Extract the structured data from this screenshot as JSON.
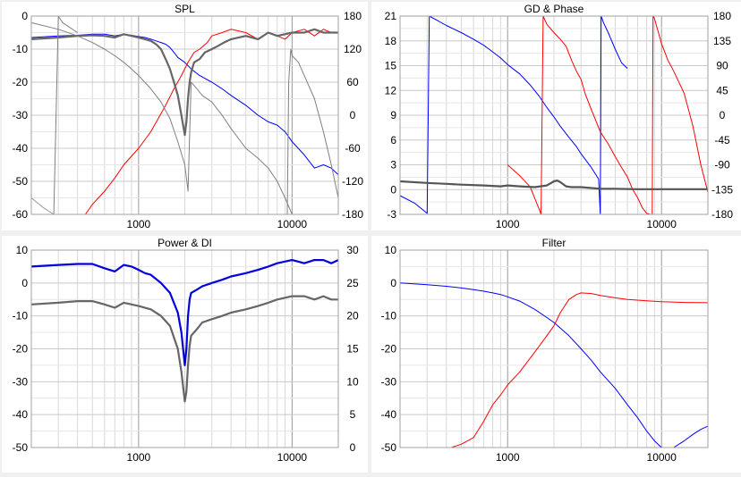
{
  "chart_data": [
    {
      "type": "line",
      "title": "SPL",
      "x_scale": "log",
      "xlim": [
        200,
        20000
      ],
      "ylim": [
        -60,
        0
      ],
      "y2lim": [
        -180,
        180
      ],
      "x_tick_labels": [
        "1000",
        "10000"
      ],
      "y_tick_labels": [
        "0",
        "-10",
        "-20",
        "-30",
        "-40",
        "-50",
        "-60"
      ],
      "y2_tick_labels": [
        "180",
        "120",
        "60",
        "0",
        "-60",
        "-120",
        "-180"
      ],
      "series": [
        {
          "color": "#0000ff",
          "axis": "left",
          "x": [
            200,
            300,
            400,
            500,
            600,
            700,
            800,
            900,
            1000,
            1100,
            1200,
            1300,
            1400,
            1500,
            1600,
            1700,
            1800,
            2000,
            2200,
            2500,
            3000,
            3500,
            4000,
            5000,
            6000,
            7000,
            8000,
            9000,
            10000,
            12000,
            14000,
            16000,
            18000,
            20000
          ],
          "y": [
            -6.5,
            -6,
            -5.8,
            -5.5,
            -5.5,
            -6,
            -5.5,
            -5.8,
            -6.2,
            -6.5,
            -7,
            -7.5,
            -8,
            -8.5,
            -9.5,
            -11,
            -12.5,
            -14,
            -16,
            -18,
            -20,
            -22,
            -24,
            -27,
            -30,
            -32,
            -33,
            -35,
            -38,
            -42,
            -46,
            -45,
            -46,
            -48
          ]
        },
        {
          "color": "#ff0000",
          "axis": "left",
          "x": [
            450,
            500,
            600,
            700,
            800,
            1000,
            1200,
            1500,
            1700,
            1900,
            2100,
            2300,
            2500,
            2800,
            3000,
            3500,
            4000,
            5000,
            6000,
            7000,
            8000,
            9000,
            10000,
            12000,
            14000,
            16000,
            18000,
            20000
          ],
          "y": [
            -60,
            -57,
            -53,
            -49,
            -45,
            -40,
            -35,
            -27,
            -22,
            -18,
            -14,
            -11,
            -10,
            -8,
            -6,
            -5,
            -4,
            -5,
            -7,
            -5,
            -6,
            -7,
            -5,
            -4,
            -6,
            -4,
            -5,
            -5
          ]
        },
        {
          "color": "#666666",
          "axis": "left",
          "x": [
            200,
            300,
            400,
            500,
            600,
            700,
            800,
            900,
            1000,
            1100,
            1200,
            1300,
            1400,
            1500,
            1600,
            1700,
            1800,
            1900,
            1950,
            2000,
            2050,
            2100,
            2150,
            2200,
            2300,
            2500,
            2700,
            3000,
            3300,
            3600,
            4000,
            5000,
            6000,
            7000,
            8000,
            10000,
            12000,
            14000,
            16000,
            18000,
            20000
          ],
          "y": [
            -7,
            -6.5,
            -6,
            -5.8,
            -6,
            -6.5,
            -5.5,
            -6,
            -6.5,
            -7,
            -7.5,
            -8.5,
            -10,
            -13,
            -16,
            -20,
            -24,
            -30,
            -33,
            -36,
            -32,
            -25,
            -20,
            -17,
            -14,
            -13,
            -11,
            -10,
            -9,
            -8,
            -7,
            -6,
            -7,
            -5,
            -6,
            -5,
            -5,
            -4,
            -5,
            -5,
            -5
          ]
        },
        {
          "color": "#808080",
          "axis": "left",
          "x": [
            200,
            300,
            400,
            500,
            600,
            700,
            800,
            900,
            1000,
            1200,
            1400,
            1600,
            1800,
            2000,
            2100,
            2200,
            2400,
            2600,
            3000,
            3500,
            4000,
            5000,
            6000,
            7000,
            8000,
            9000,
            10000,
            12000,
            14000,
            16000,
            18000,
            20000
          ],
          "y": [
            -2,
            -4,
            -6,
            -8,
            -10,
            -12,
            -14,
            -16,
            -18,
            -22,
            -26,
            -31,
            -38,
            -45,
            -53,
            -20,
            -22,
            -24,
            -26,
            -30,
            -34,
            -40,
            -43,
            -46,
            -50,
            -55,
            -60,
            -60,
            -60,
            -60,
            -60,
            -60
          ]
        },
        {
          "color": "#808080",
          "axis": "left",
          "x": [
            200,
            250,
            280,
            300,
            320,
            400
          ],
          "y": [
            -60,
            -60,
            -62,
            0,
            -2,
            -5
          ]
        },
        {
          "color": "#808080",
          "axis": "left",
          "x": [
            9000,
            9300,
            9500,
            9800,
            10000,
            11000,
            12000,
            14000,
            16000,
            18000,
            20000
          ],
          "y": [
            -60,
            -60,
            -20,
            -10,
            -12,
            -14,
            -18,
            -25,
            -35,
            -45,
            -55
          ]
        },
        {
          "color": "#999999",
          "axis": "left",
          "x": [
            200,
            240,
            280
          ],
          "y": [
            -55,
            -58,
            -60
          ]
        }
      ]
    },
    {
      "type": "line",
      "title": "GD & Phase",
      "x_scale": "log",
      "xlim": [
        200,
        20000
      ],
      "ylim": [
        -3,
        21
      ],
      "y2lim": [
        -180,
        180
      ],
      "x_tick_labels": [
        "1000",
        "10000"
      ],
      "y_tick_labels": [
        "21",
        "18",
        "15",
        "12",
        "9",
        "6",
        "3",
        "0",
        "-3"
      ],
      "y2_tick_labels": [
        "180",
        "135",
        "90",
        "45",
        "0",
        "-45",
        "-90",
        "-135",
        "-180"
      ],
      "series": [
        {
          "color": "#0000ff",
          "axis": "right",
          "x": [
            200,
            250,
            300,
            310,
            350,
            400,
            500,
            600,
            700,
            800,
            900,
            1000,
            1200,
            1400,
            1600,
            1800,
            2000,
            2200,
            2500,
            2800,
            3000,
            3500,
            3900,
            4000,
            4050,
            4200,
            4500,
            5000,
            5500,
            6000
          ],
          "y": [
            -146,
            -160,
            -178,
            180,
            172,
            163,
            150,
            138,
            127,
            115,
            104,
            92,
            75,
            55,
            35,
            14,
            -3,
            -20,
            -40,
            -57,
            -70,
            -95,
            -116,
            -180,
            180,
            168,
            150,
            120,
            95,
            85
          ]
        },
        {
          "color": "#ff0000",
          "axis": "right",
          "x": [
            1000,
            1200,
            1400,
            1600,
            1650,
            1700,
            1800,
            2000,
            2200,
            2400,
            2600,
            2800,
            3000,
            3200,
            3500,
            4000,
            4500,
            5000,
            5500,
            6000,
            6500,
            7000,
            7500,
            8000,
            8500,
            8700,
            8800,
            8900,
            9000,
            10000,
            11000,
            12000,
            14000,
            16000,
            18000,
            20000
          ],
          "y": [
            -90,
            -110,
            -130,
            -170,
            -180,
            180,
            165,
            150,
            138,
            125,
            100,
            80,
            65,
            38,
            10,
            -30,
            -52,
            -75,
            -95,
            -112,
            -135,
            -150,
            -168,
            -178,
            -180,
            -180,
            180,
            178,
            175,
            130,
            100,
            80,
            40,
            -20,
            -90,
            -140
          ]
        },
        {
          "color": "#555555",
          "axis": "left",
          "x": [
            200,
            300,
            400,
            500,
            700,
            900,
            1000,
            1200,
            1500,
            1800,
            2000,
            2100,
            2200,
            2400,
            2600,
            3000,
            4000,
            5000,
            7000,
            10000,
            14000,
            20000
          ],
          "y": [
            1,
            0.8,
            0.7,
            0.6,
            0.5,
            0.4,
            0.5,
            0.4,
            0.3,
            0.5,
            1,
            1.1,
            0.9,
            0.4,
            0.3,
            0.3,
            0.1,
            0.1,
            0.05,
            0.05,
            0.05,
            0.05
          ]
        }
      ]
    },
    {
      "type": "line",
      "title": "Power & DI",
      "x_scale": "log",
      "xlim": [
        200,
        20000
      ],
      "ylim": [
        -50,
        10
      ],
      "y2lim": [
        0,
        30
      ],
      "x_tick_labels": [
        "1000",
        "10000"
      ],
      "y_tick_labels": [
        "10",
        "0",
        "-10",
        "-20",
        "-30",
        "-40",
        "-50"
      ],
      "y2_tick_labels": [
        "30",
        "25",
        "20",
        "15",
        "10",
        "5",
        "0"
      ],
      "series": [
        {
          "color": "#0000dd",
          "axis": "left",
          "x": [
            200,
            300,
            400,
            500,
            600,
            700,
            800,
            900,
            1000,
            1100,
            1200,
            1400,
            1600,
            1800,
            1900,
            2000,
            2050,
            2100,
            2150,
            2200,
            2400,
            2600,
            3000,
            3500,
            4000,
            5000,
            6000,
            7000,
            8000,
            10000,
            12000,
            14000,
            16000,
            18000,
            20000
          ],
          "y": [
            5,
            5.5,
            5.8,
            5.8,
            4.5,
            3.5,
            5.5,
            5,
            4,
            3,
            2.5,
            0,
            -3,
            -9,
            -15,
            -25,
            -20,
            -10,
            -5,
            -3,
            -2,
            -1,
            0,
            1,
            2,
            3,
            4,
            5,
            6,
            7,
            6,
            7,
            7,
            6,
            7
          ]
        },
        {
          "color": "#666666",
          "axis": "left",
          "x": [
            200,
            300,
            400,
            500,
            600,
            700,
            800,
            900,
            1000,
            1200,
            1400,
            1600,
            1800,
            1900,
            2000,
            2050,
            2100,
            2150,
            2200,
            2400,
            2600,
            3000,
            3500,
            4000,
            5000,
            6000,
            7000,
            8000,
            10000,
            12000,
            14000,
            16000,
            18000,
            20000
          ],
          "y": [
            -6.5,
            -6,
            -5.5,
            -5.5,
            -6.5,
            -7.5,
            -6,
            -6.5,
            -7,
            -8,
            -10,
            -13,
            -20,
            -27,
            -36,
            -33,
            -25,
            -19,
            -16,
            -14,
            -12,
            -11,
            -10,
            -9,
            -8,
            -7,
            -6,
            -5,
            -4,
            -4,
            -5,
            -4,
            -5,
            -5
          ]
        },
        {
          "color": "#ff0000",
          "axis": "left",
          "x": [
            200,
            20000
          ],
          "y": [
            -50,
            -50
          ]
        }
      ]
    },
    {
      "type": "line",
      "title": "Filter",
      "x_scale": "log",
      "xlim": [
        200,
        20000
      ],
      "ylim": [
        -50,
        10
      ],
      "x_tick_labels": [
        "1000",
        "10000"
      ],
      "y_tick_labels": [
        "10",
        "0",
        "-10",
        "-20",
        "-30",
        "-40",
        "-50"
      ],
      "series": [
        {
          "color": "#0000ff",
          "x": [
            200,
            300,
            400,
            500,
            600,
            700,
            800,
            900,
            1000,
            1200,
            1500,
            1800,
            2000,
            2500,
            3000,
            3500,
            4000,
            5000,
            6000,
            7000,
            8000,
            9000,
            10000
          ],
          "y": [
            0,
            -0.5,
            -1,
            -1.5,
            -2,
            -2.5,
            -3,
            -3.5,
            -4.2,
            -5.5,
            -8,
            -10.5,
            -12,
            -16,
            -20,
            -23.5,
            -27,
            -32,
            -37,
            -41,
            -45,
            -48,
            -51
          ]
        },
        {
          "color": "#0000ff",
          "x": [
            12000,
            14000,
            16000,
            18000,
            20000
          ],
          "y": [
            -51,
            -48,
            -46,
            -44.5,
            -43.5
          ]
        },
        {
          "color": "#ff0000",
          "x": [
            430,
            500,
            600,
            700,
            800,
            900,
            1000,
            1200,
            1500,
            1800,
            2000,
            2200,
            2500,
            2800,
            3000,
            3500,
            4000,
            5000,
            6000,
            8000,
            10000,
            14000,
            20000
          ],
          "y": [
            -51,
            -49,
            -47,
            -42,
            -37,
            -34,
            -31,
            -27,
            -21,
            -16,
            -13,
            -9,
            -5,
            -3.5,
            -3,
            -3.2,
            -3.8,
            -4.5,
            -5,
            -5.4,
            -5.7,
            -5.9,
            -6
          ]
        }
      ]
    }
  ]
}
